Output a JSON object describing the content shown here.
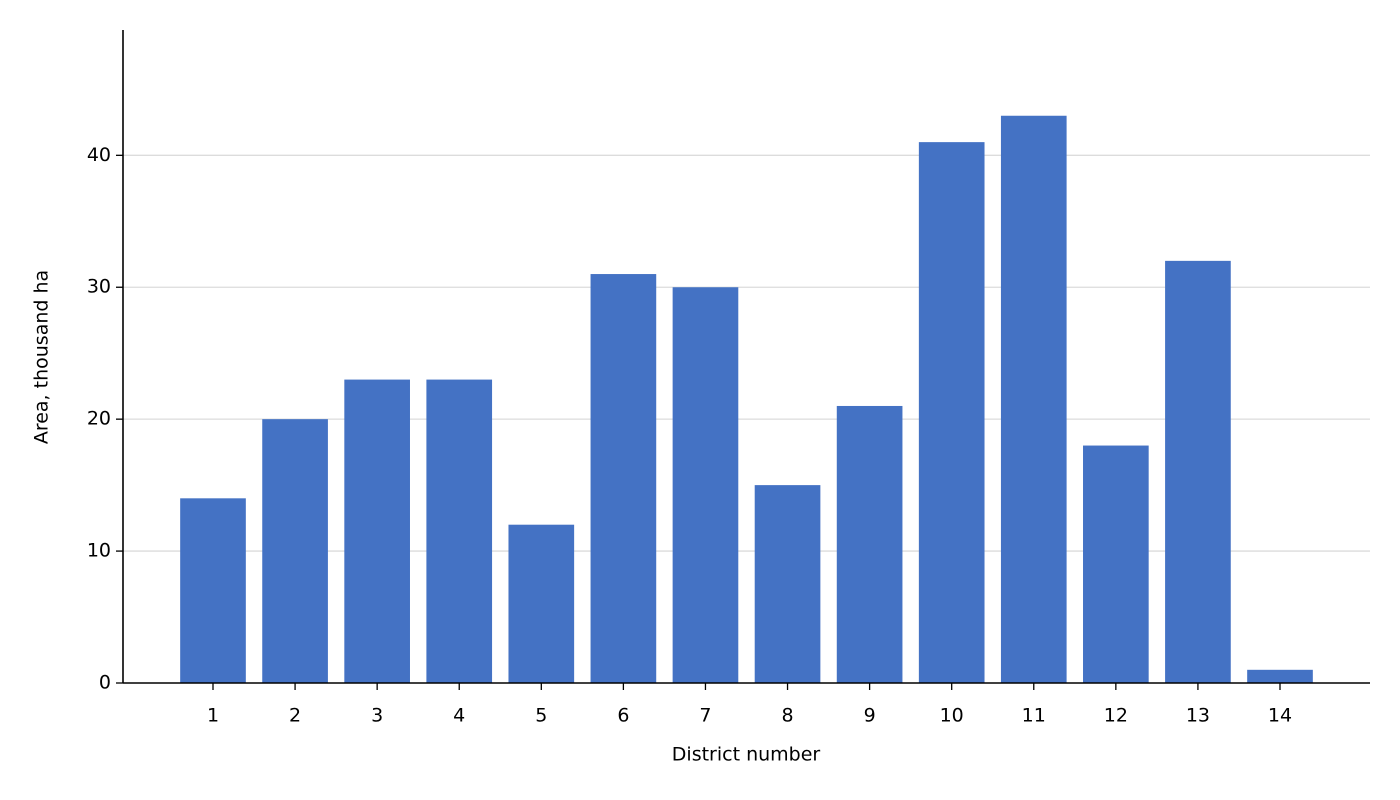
{
  "chart_data": {
    "type": "bar",
    "x_label": "District number",
    "y_label": "Area, thousand ha",
    "categories": [
      "1",
      "2",
      "3",
      "4",
      "5",
      "6",
      "7",
      "8",
      "9",
      "10",
      "11",
      "12",
      "13",
      "14"
    ],
    "values": [
      14,
      20,
      23,
      23,
      12,
      31,
      30,
      15,
      21,
      41,
      43,
      18,
      32,
      1
    ],
    "color": "#4472c4",
    "ylim": [
      0,
      49.5
    ],
    "yticks": [
      0,
      10,
      20,
      30,
      40
    ],
    "grid": true
  }
}
